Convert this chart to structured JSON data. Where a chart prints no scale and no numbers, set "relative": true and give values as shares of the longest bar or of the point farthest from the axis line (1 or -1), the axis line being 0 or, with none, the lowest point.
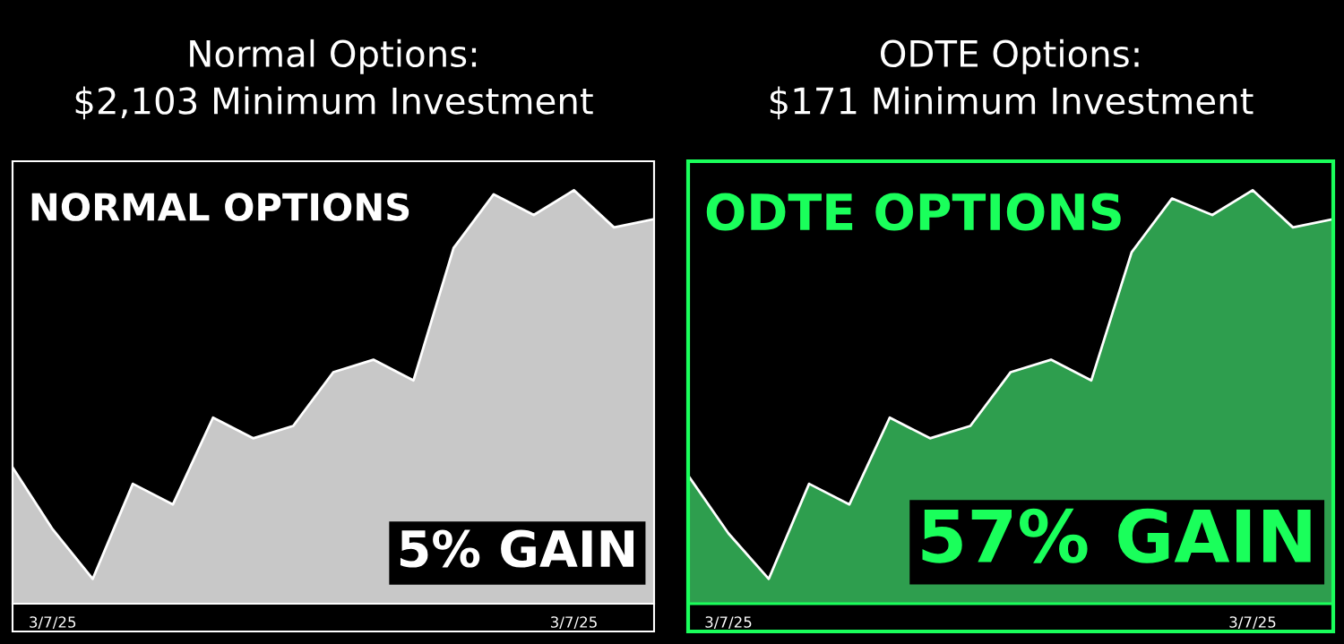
{
  "chart_data": [
    {
      "type": "area",
      "title": "Normal Options:\n$2,103 Minimum Investment",
      "relative": true,
      "categories": [
        null,
        "3/7/25",
        null,
        null,
        null,
        null,
        null,
        null,
        null,
        null,
        null,
        null,
        null,
        null,
        "3/7/25",
        null,
        null
      ],
      "series": [
        {
          "color": "#c8c8c8",
          "values": [
            0.33,
            0.18,
            0.06,
            0.29,
            0.24,
            0.45,
            0.4,
            0.43,
            0.56,
            0.59,
            0.54,
            0.86,
            0.99,
            0.94,
            1.0,
            0.91,
            0.93
          ]
        }
      ],
      "annotations": [
        "NORMAL OPTIONS",
        "5% GAIN"
      ]
    },
    {
      "type": "area",
      "title": "ODTE Options:\n$171 Minimum Investment",
      "relative": true,
      "categories": [
        null,
        "3/7/25",
        null,
        null,
        null,
        null,
        null,
        null,
        null,
        null,
        null,
        null,
        null,
        null,
        "3/7/25",
        null,
        null
      ],
      "series": [
        {
          "color": "#2e9e4e",
          "values": [
            0.31,
            0.17,
            0.06,
            0.29,
            0.24,
            0.45,
            0.4,
            0.43,
            0.56,
            0.59,
            0.54,
            0.85,
            0.98,
            0.94,
            1.0,
            0.91,
            0.93
          ]
        }
      ],
      "annotations": [
        "ODTE OPTIONS",
        "57% GAIN"
      ]
    }
  ]
}
